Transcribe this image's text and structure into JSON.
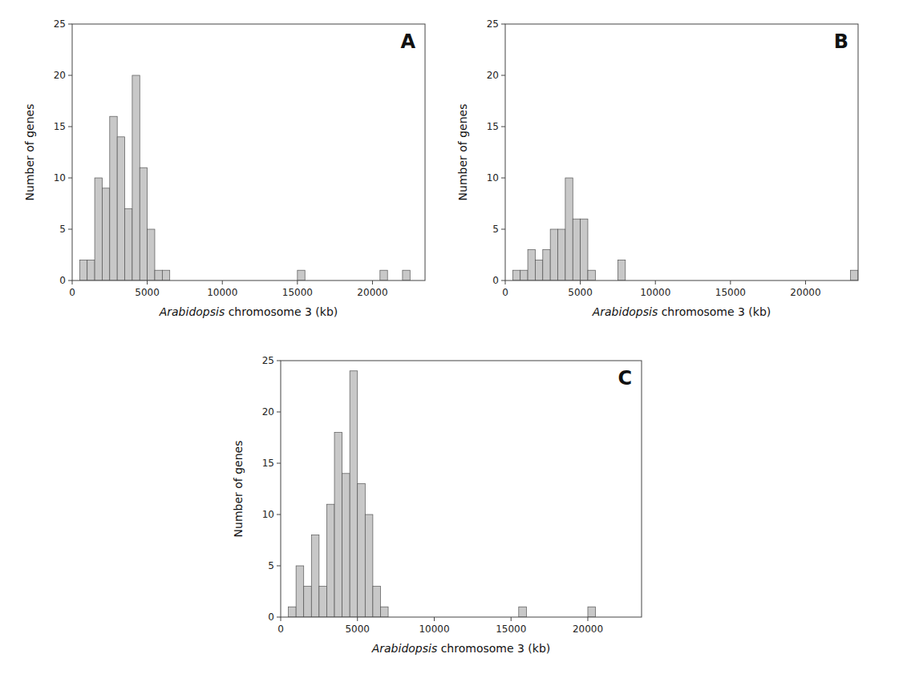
{
  "chart_data": [
    {
      "type": "histogram",
      "title": "A",
      "xlabel": [
        {
          "text": "Arabidopsis",
          "italic": true
        },
        {
          "text": " chromosome 3 (kb)",
          "italic": false
        }
      ],
      "ylabel": "Number of genes",
      "x": [
        500,
        1000,
        1500,
        2000,
        2500,
        3000,
        3500,
        4000,
        4500,
        5000,
        5500,
        6000,
        15000,
        20500,
        22000
      ],
      "values": [
        2,
        2,
        10,
        9,
        16,
        14,
        7,
        20,
        11,
        5,
        1,
        1,
        1,
        1,
        1
      ],
      "bin_width": 500,
      "color": "#c8c8c8",
      "xlim": [
        0,
        23500
      ],
      "ylim": [
        0,
        25
      ],
      "xticks": [
        0,
        5000,
        10000,
        15000,
        20000
      ],
      "yticks": [
        0,
        5,
        10,
        15,
        20,
        25
      ],
      "grid": false
    },
    {
      "type": "histogram",
      "title": "B",
      "xlabel": [
        {
          "text": "Arabidopsis",
          "italic": true
        },
        {
          "text": " chromosome 3 (kb)",
          "italic": false
        }
      ],
      "ylabel": "Number of genes",
      "x": [
        500,
        1000,
        1500,
        2000,
        2500,
        3000,
        3500,
        4000,
        4500,
        5000,
        5500,
        7500,
        23000
      ],
      "values": [
        1,
        1,
        3,
        2,
        3,
        5,
        5,
        10,
        6,
        6,
        1,
        2,
        1
      ],
      "bin_width": 500,
      "color": "#c8c8c8",
      "xlim": [
        0,
        23500
      ],
      "ylim": [
        0,
        25
      ],
      "xticks": [
        0,
        5000,
        10000,
        15000,
        20000
      ],
      "yticks": [
        0,
        5,
        10,
        15,
        20,
        25
      ],
      "grid": false
    },
    {
      "type": "histogram",
      "title": "C",
      "xlabel": [
        {
          "text": "Arabidopsis",
          "italic": true
        },
        {
          "text": " chromosome 3 (kb)",
          "italic": false
        }
      ],
      "ylabel": "Number of genes",
      "x": [
        500,
        1000,
        1500,
        2000,
        2500,
        3000,
        3500,
        4000,
        4500,
        5000,
        5500,
        6000,
        6500,
        15500,
        20000
      ],
      "values": [
        1,
        5,
        3,
        8,
        3,
        11,
        18,
        14,
        24,
        13,
        10,
        3,
        1,
        1,
        1
      ],
      "bin_width": 500,
      "color": "#c8c8c8",
      "xlim": [
        0,
        23500
      ],
      "ylim": [
        0,
        25
      ],
      "xticks": [
        0,
        5000,
        10000,
        15000,
        20000
      ],
      "yticks": [
        0,
        5,
        10,
        15,
        20,
        25
      ],
      "grid": false
    }
  ]
}
